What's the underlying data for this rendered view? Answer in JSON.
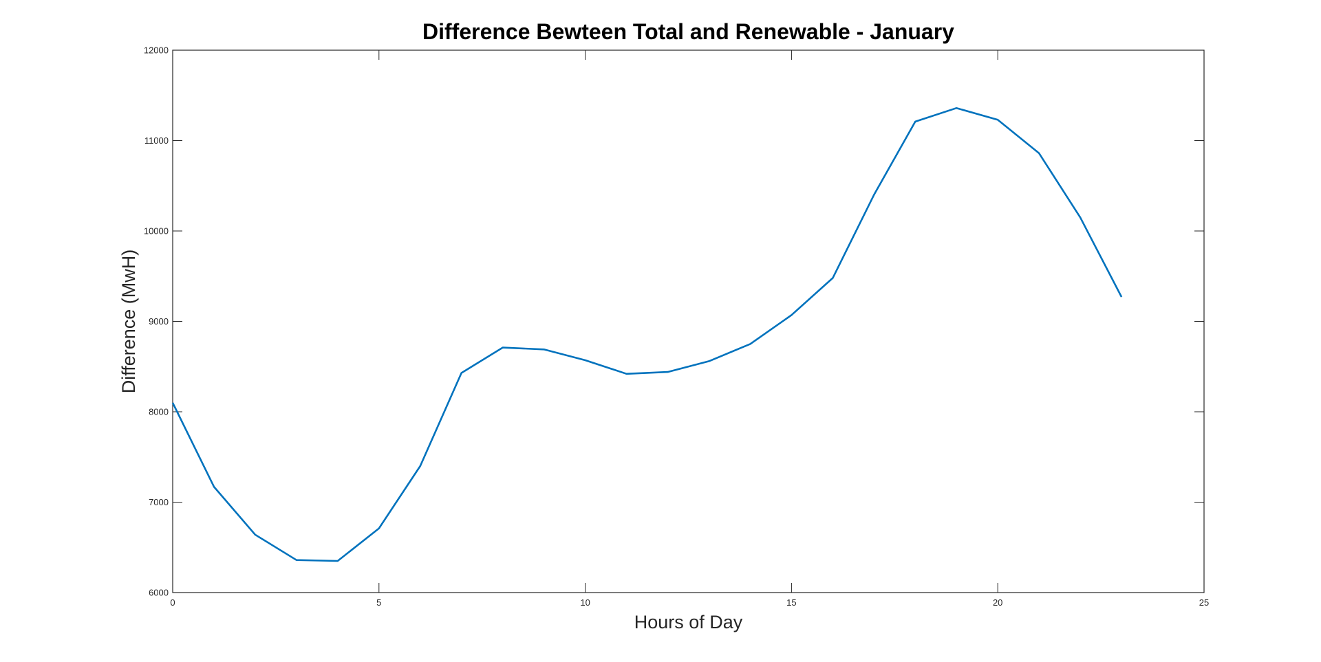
{
  "chart_data": {
    "type": "line",
    "title": "Difference Bewteen Total and Renewable - January",
    "xlabel": "Hours of Day",
    "ylabel": "Difference (MwH)",
    "xlim": [
      0,
      25
    ],
    "ylim": [
      6000,
      12000
    ],
    "xticks": [
      0,
      5,
      10,
      15,
      20,
      25
    ],
    "yticks": [
      6000,
      7000,
      8000,
      9000,
      10000,
      11000,
      12000
    ],
    "grid": false,
    "legend": "none",
    "series": [
      {
        "color": "#0072BD",
        "x": [
          0,
          1,
          2,
          3,
          4,
          5,
          6,
          7,
          8,
          9,
          10,
          11,
          12,
          13,
          14,
          15,
          16,
          17,
          18,
          19,
          20,
          21,
          22,
          23
        ],
        "values": [
          8100,
          7170,
          6640,
          6360,
          6350,
          6710,
          7400,
          8430,
          8710,
          8690,
          8570,
          8420,
          8440,
          8560,
          8750,
          9070,
          9480,
          10400,
          11210,
          11360,
          11230,
          10860,
          10150,
          9270
        ]
      }
    ]
  }
}
